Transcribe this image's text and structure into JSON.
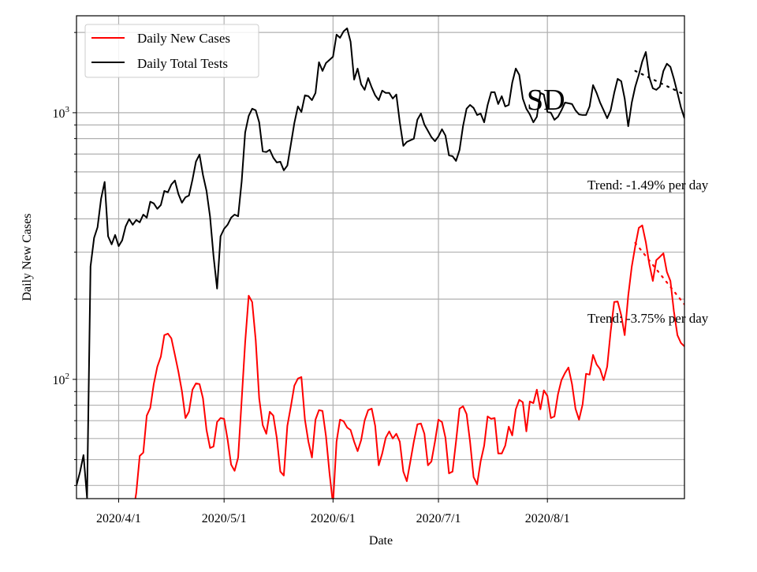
{
  "chart_data": {
    "type": "line",
    "title": "",
    "xlabel": "Date",
    "ylabel": "Daily New Cases",
    "yscale": "log",
    "ylim": [
      35.7,
      2310
    ],
    "xlim": [
      "2020/3/20",
      "2020/9/9"
    ],
    "grid": true,
    "legend_position": "top-left",
    "x_ticks": [
      "2020/4/1",
      "2020/5/1",
      "2020/6/1",
      "2020/7/1",
      "2020/8/1"
    ],
    "y_ticks": [
      {
        "base": "10",
        "exp": "2",
        "value": 100
      },
      {
        "base": "10",
        "exp": "3",
        "value": 1000
      }
    ],
    "dates": [
      "2020/3/20",
      "2020/3/21",
      "2020/3/22",
      "2020/3/23",
      "2020/3/24",
      "2020/3/25",
      "2020/3/26",
      "2020/3/27",
      "2020/3/28",
      "2020/3/29",
      "2020/3/30",
      "2020/3/31",
      "2020/4/1",
      "2020/4/2",
      "2020/4/3",
      "2020/4/4",
      "2020/4/5",
      "2020/4/6",
      "2020/4/7",
      "2020/4/8",
      "2020/4/9",
      "2020/4/10",
      "2020/4/11",
      "2020/4/12",
      "2020/4/13",
      "2020/4/14",
      "2020/4/15",
      "2020/4/16",
      "2020/4/17",
      "2020/4/18",
      "2020/4/19",
      "2020/4/20",
      "2020/4/21",
      "2020/4/22",
      "2020/4/23",
      "2020/4/24",
      "2020/4/25",
      "2020/4/26",
      "2020/4/27",
      "2020/4/28",
      "2020/4/29",
      "2020/4/30",
      "2020/5/1",
      "2020/5/2",
      "2020/5/3",
      "2020/5/4",
      "2020/5/5",
      "2020/5/6",
      "2020/5/7",
      "2020/5/8",
      "2020/5/9",
      "2020/5/10",
      "2020/5/11",
      "2020/5/12",
      "2020/5/13",
      "2020/5/14",
      "2020/5/15",
      "2020/5/16",
      "2020/5/17",
      "2020/5/18",
      "2020/5/19",
      "2020/5/20",
      "2020/5/21",
      "2020/5/22",
      "2020/5/23",
      "2020/5/24",
      "2020/5/25",
      "2020/5/26",
      "2020/5/27",
      "2020/5/28",
      "2020/5/29",
      "2020/5/30",
      "2020/5/31",
      "2020/6/1",
      "2020/6/2",
      "2020/6/3",
      "2020/6/4",
      "2020/6/5",
      "2020/6/6",
      "2020/6/7",
      "2020/6/8",
      "2020/6/9",
      "2020/6/10",
      "2020/6/11",
      "2020/6/12",
      "2020/6/13",
      "2020/6/14",
      "2020/6/15",
      "2020/6/16",
      "2020/6/17",
      "2020/6/18",
      "2020/6/19",
      "2020/6/20",
      "2020/6/21",
      "2020/6/22",
      "2020/6/23",
      "2020/6/24",
      "2020/6/25",
      "2020/6/26",
      "2020/6/27",
      "2020/6/28",
      "2020/6/29",
      "2020/6/30",
      "2020/7/1",
      "2020/7/2",
      "2020/7/3",
      "2020/7/4",
      "2020/7/5",
      "2020/7/6",
      "2020/7/7",
      "2020/7/8",
      "2020/7/9",
      "2020/7/10",
      "2020/7/11",
      "2020/7/12",
      "2020/7/13",
      "2020/7/14",
      "2020/7/15",
      "2020/7/16",
      "2020/7/17",
      "2020/7/18",
      "2020/7/19",
      "2020/7/20",
      "2020/7/21",
      "2020/7/22",
      "2020/7/23",
      "2020/7/24",
      "2020/7/25",
      "2020/7/26",
      "2020/7/27",
      "2020/7/28",
      "2020/7/29",
      "2020/7/30",
      "2020/7/31",
      "2020/8/1",
      "2020/8/2",
      "2020/8/3",
      "2020/8/4",
      "2020/8/5",
      "2020/8/6",
      "2020/8/7",
      "2020/8/8",
      "2020/8/9",
      "2020/8/10",
      "2020/8/11",
      "2020/8/12",
      "2020/8/13",
      "2020/8/14",
      "2020/8/15",
      "2020/8/16",
      "2020/8/17",
      "2020/8/18",
      "2020/8/19",
      "2020/8/20",
      "2020/8/21",
      "2020/8/22",
      "2020/8/23",
      "2020/8/24",
      "2020/8/25",
      "2020/8/26",
      "2020/8/27",
      "2020/8/28",
      "2020/8/29",
      "2020/8/30",
      "2020/8/31",
      "2020/9/1",
      "2020/9/2",
      "2020/9/3",
      "2020/9/4",
      "2020/9/5",
      "2020/9/6",
      "2020/9/7",
      "2020/9/8",
      "2020/9/9"
    ],
    "series": [
      {
        "name": "Daily New Cases",
        "color": "#ff0000",
        "values": [
          null,
          null,
          null,
          null,
          null,
          null,
          null,
          null,
          null,
          null,
          null,
          null,
          null,
          null,
          null,
          null,
          31,
          37.5,
          51.6,
          53.1,
          73.1,
          78.2,
          96,
          111.5,
          121.8,
          146.5,
          148.4,
          142.5,
          123.5,
          107,
          90.3,
          71.6,
          75.6,
          91.5,
          96.6,
          96,
          84.9,
          64.6,
          55.3,
          56,
          69.2,
          71.6,
          71.1,
          59.6,
          47.9,
          45.4,
          50.9,
          83.8,
          137.7,
          206,
          195,
          140,
          84.9,
          67.3,
          62.5,
          75.6,
          73.1,
          60.4,
          45.1,
          43.6,
          66.9,
          79.3,
          94.7,
          100.7,
          102,
          70.6,
          58.4,
          50.9,
          70.6,
          76.7,
          76.1,
          61.2,
          44.4,
          34,
          58.4,
          70.6,
          69.7,
          66,
          64.6,
          58.4,
          53.8,
          59.2,
          70.1,
          76.7,
          77.7,
          66.9,
          47.6,
          52.7,
          60.4,
          63.8,
          60,
          62.5,
          58.4,
          45.1,
          41.5,
          49.2,
          58.4,
          67.8,
          68.3,
          62.5,
          47.6,
          49.2,
          58.4,
          70.6,
          69.2,
          60.4,
          44.4,
          45.1,
          58.4,
          77.7,
          79.3,
          74.1,
          58.4,
          43,
          40.4,
          49.2,
          56.4,
          72.6,
          71.1,
          71.6,
          52.7,
          52.7,
          56.4,
          66.5,
          61.6,
          77.2,
          83.8,
          82.1,
          63.8,
          82.6,
          81.5,
          91.5,
          77.2,
          90.9,
          86.7,
          71.6,
          72.6,
          87.9,
          99.3,
          105.6,
          110.8,
          96,
          77.7,
          70.6,
          80.4,
          104.9,
          104.2,
          123.5,
          113.8,
          109.3,
          99.3,
          111.5,
          151,
          195,
          196,
          174,
          146.5,
          206,
          265,
          316,
          370,
          378,
          327,
          271,
          234,
          280,
          288,
          297,
          253,
          234,
          180,
          146.5,
          137,
          133
        ]
      },
      {
        "name": "Daily Total Tests",
        "color": "#000000",
        "values": [
          40,
          45,
          52,
          36,
          265,
          339,
          372,
          476,
          550,
          344,
          321,
          348,
          316,
          332,
          375,
          399,
          380,
          396,
          388,
          415,
          404,
          464,
          457,
          436,
          451,
          509,
          503,
          538,
          557,
          496,
          460,
          482,
          489,
          561,
          656,
          697,
          584,
          509,
          407,
          290,
          219,
          344,
          367,
          380,
          404,
          415,
          409,
          553,
          843,
          973,
          1035,
          1021,
          921,
          716,
          712,
          726,
          678,
          651,
          655,
          608,
          634,
          762,
          916,
          1056,
          1007,
          1162,
          1154,
          1115,
          1186,
          1546,
          1435,
          1536,
          1578,
          1622,
          1963,
          1910,
          2018,
          2073,
          1846,
          1331,
          1464,
          1278,
          1218,
          1349,
          1244,
          1162,
          1115,
          1210,
          1186,
          1186,
          1130,
          1170,
          921,
          751,
          777,
          788,
          799,
          941,
          993,
          903,
          855,
          810,
          782,
          815,
          867,
          821,
          692,
          687,
          660,
          726,
          891,
          1035,
          1070,
          1042,
          980,
          993,
          921,
          1070,
          1194,
          1194,
          1078,
          1154,
          1056,
          1070,
          1296,
          1464,
          1387,
          1130,
          1035,
          986,
          921,
          966,
          1186,
          1170,
          1007,
          1000,
          941,
          966,
          1021,
          1092,
          1085,
          1078,
          1021,
          986,
          980,
          980,
          1056,
          1269,
          1186,
          1092,
          1021,
          953,
          1021,
          1186,
          1340,
          1313,
          1130,
          890,
          1092,
          1252,
          1387,
          1557,
          1690,
          1359,
          1235,
          1218,
          1252,
          1435,
          1526,
          1485,
          1340,
          1186,
          1049,
          953
        ]
      }
    ],
    "trends": [
      {
        "series": "Daily Total Tests",
        "color": "#000000",
        "start": "2020/8/26",
        "end": "2020/9/9",
        "start_value": 1435,
        "end_value": 1170,
        "label": "Trend: -1.49% per day"
      },
      {
        "series": "Daily New Cases",
        "color": "#ff0000",
        "start": "2020/8/26",
        "end": "2020/9/9",
        "start_value": 325,
        "end_value": 191,
        "label": "Trend: -3.75% per day"
      }
    ],
    "annotations": {
      "region": "SD"
    }
  }
}
